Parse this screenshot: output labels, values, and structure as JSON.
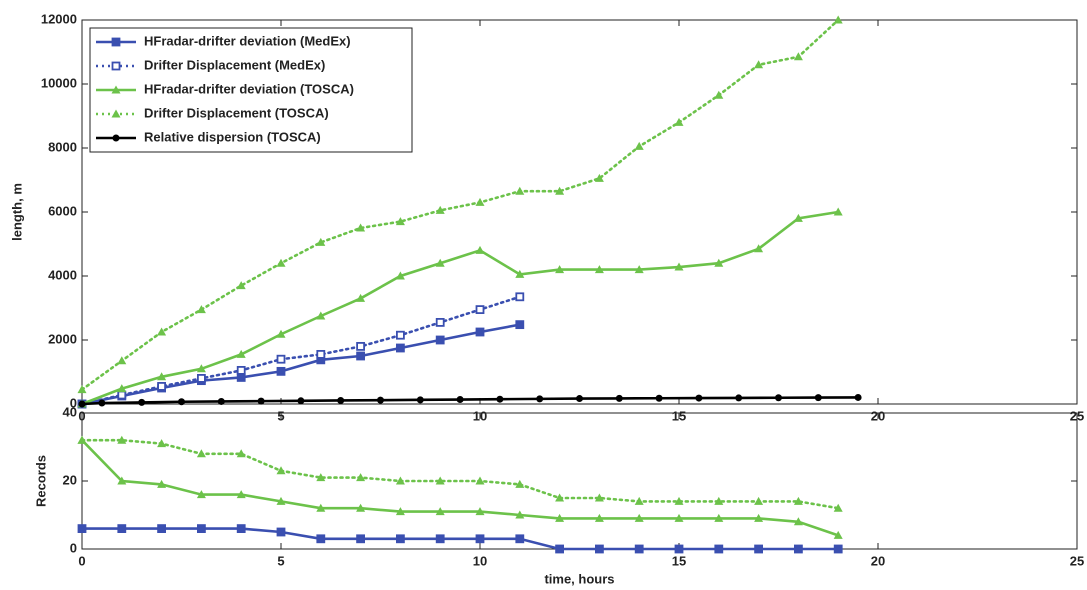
{
  "chart_data": [
    {
      "type": "line",
      "ylabel": "length, m",
      "xlim": [
        0,
        25
      ],
      "xticks": [
        0,
        5,
        10,
        15,
        20,
        25
      ],
      "ylim": [
        0,
        12000
      ],
      "yticks": [
        0,
        2000,
        4000,
        6000,
        8000,
        10000,
        12000
      ],
      "legend": "upper left",
      "series": [
        {
          "name": "HFradar-drifter deviation (MedEx)",
          "color": "#3a4fb0",
          "dash": false,
          "marker": "square",
          "x": [
            0,
            1,
            2,
            3,
            4,
            5,
            6,
            7,
            8,
            9,
            10,
            11
          ],
          "values": [
            0,
            250,
            500,
            730,
            830,
            1020,
            1380,
            1500,
            1750,
            2000,
            2250,
            2480
          ]
        },
        {
          "name": "Drifter Displacement (MedEx)",
          "color": "#3a4fb0",
          "dash": true,
          "marker": "square-open",
          "x": [
            0,
            1,
            2,
            3,
            4,
            5,
            6,
            7,
            8,
            9,
            10,
            11
          ],
          "values": [
            0,
            280,
            550,
            800,
            1050,
            1400,
            1550,
            1800,
            2150,
            2550,
            2950,
            3350
          ]
        },
        {
          "name": "HFradar-drifter deviation (TOSCA)",
          "color": "#6cc24a",
          "dash": false,
          "marker": "triangle",
          "x": [
            0,
            1,
            2,
            3,
            4,
            5,
            6,
            7,
            8,
            9,
            10,
            11,
            12,
            13,
            14,
            15,
            16,
            17,
            18,
            19
          ],
          "values": [
            0,
            480,
            850,
            1100,
            1550,
            2180,
            2750,
            3300,
            4000,
            4400,
            4800,
            4050,
            4200,
            4200,
            4200,
            4280,
            4400,
            4850,
            5800,
            6000
          ]
        },
        {
          "name": "Drifter Displacement (TOSCA)",
          "color": "#6cc24a",
          "dash": true,
          "marker": "triangle",
          "x": [
            0,
            1,
            2,
            3,
            4,
            5,
            6,
            7,
            8,
            9,
            10,
            11,
            12,
            13,
            14,
            15,
            16,
            17,
            18,
            19
          ],
          "values": [
            450,
            1350,
            2250,
            2950,
            3700,
            4400,
            5050,
            5500,
            5700,
            6050,
            6300,
            6650,
            6650,
            7050,
            8050,
            8800,
            9650,
            10600,
            10850,
            12000
          ]
        },
        {
          "name": "Relative dispersion (TOSCA)",
          "color": "#000000",
          "dash": false,
          "marker": "circle",
          "x": [
            0,
            0.5,
            1.5,
            2.5,
            3.5,
            4.5,
            5.5,
            6.5,
            7.5,
            8.5,
            9.5,
            10.5,
            11.5,
            12.5,
            13.5,
            14.5,
            15.5,
            16.5,
            17.5,
            18.5,
            19.5
          ],
          "values": [
            0,
            30,
            50,
            70,
            80,
            90,
            100,
            110,
            120,
            130,
            140,
            150,
            160,
            170,
            175,
            180,
            185,
            190,
            195,
            200,
            205
          ]
        }
      ]
    },
    {
      "type": "line",
      "ylabel": "Records",
      "xlabel": "time, hours",
      "xlim": [
        0,
        25
      ],
      "xticks": [
        0,
        5,
        10,
        15,
        20,
        25
      ],
      "ylim": [
        0,
        40
      ],
      "yticks": [
        0,
        20,
        40
      ],
      "series": [
        {
          "color": "#3a4fb0",
          "dash": false,
          "marker": "square",
          "x": [
            0,
            1,
            2,
            3,
            4,
            5,
            6,
            7,
            8,
            9,
            10,
            11,
            12,
            13,
            14,
            15,
            16,
            17,
            18,
            19
          ],
          "values": [
            6,
            6,
            6,
            6,
            6,
            5,
            3,
            3,
            3,
            3,
            3,
            3,
            0,
            0,
            0,
            0,
            0,
            0,
            0,
            0
          ]
        },
        {
          "color": "#6cc24a",
          "dash": true,
          "marker": "triangle",
          "x": [
            0,
            1,
            2,
            3,
            4,
            5,
            6,
            7,
            8,
            9,
            10,
            11,
            12,
            13,
            14,
            15,
            16,
            17,
            18,
            19
          ],
          "values": [
            32,
            32,
            31,
            28,
            28,
            23,
            21,
            21,
            20,
            20,
            20,
            19,
            15,
            15,
            14,
            14,
            14,
            14,
            14,
            12
          ]
        },
        {
          "color": "#6cc24a",
          "dash": false,
          "marker": "triangle",
          "x": [
            0,
            1,
            2,
            3,
            4,
            5,
            6,
            7,
            8,
            9,
            10,
            11,
            12,
            13,
            14,
            15,
            16,
            17,
            18,
            19
          ],
          "values": [
            32,
            20,
            19,
            16,
            16,
            14,
            12,
            12,
            11,
            11,
            11,
            10,
            9,
            9,
            9,
            9,
            9,
            9,
            8,
            4
          ]
        }
      ]
    }
  ]
}
